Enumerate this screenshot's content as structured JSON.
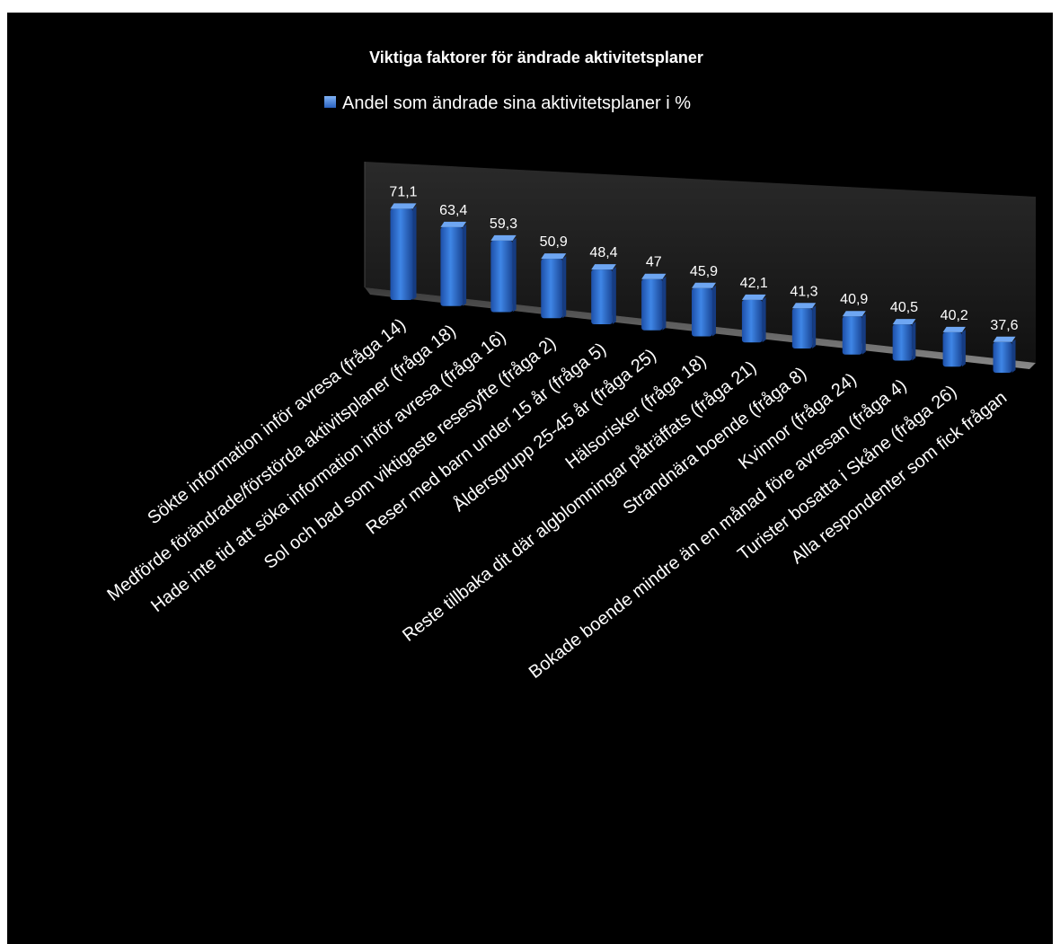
{
  "chart_data": {
    "type": "bar",
    "title": "Viktiga faktorer för ändrade aktivitetsplaner",
    "legend": {
      "position": "top"
    },
    "series": [
      {
        "name": "Andel som ändrade sina aktivitetsplaner i %",
        "color": "#2e6fd0",
        "values": [
          71.1,
          63.4,
          59.3,
          50.9,
          48.4,
          47,
          45.9,
          42.1,
          41.3,
          40.9,
          40.5,
          40.2,
          37.6
        ],
        "value_labels": [
          "71,1",
          "63,4",
          "59,3",
          "50,9",
          "48,4",
          "47",
          "45,9",
          "42,1",
          "41,3",
          "40,9",
          "40,5",
          "40,2",
          "37,6"
        ]
      }
    ],
    "categories": [
      "Sökte information inför avresa (fråga 14)",
      "Medförde förändrade/förstörda aktivitsplaner (fråga 18)",
      "Hade inte tid att söka information inför avresa (fråga 16)",
      "Sol och bad som viktigaste resesyfte (fråga 2)",
      "Reser med barn under 15 år (fråga 5)",
      "Åldersgrupp 25-45 år (fråga 25)",
      "Hälsorisker (fråga 18)",
      "Reste tillbaka dit där algblomningar påträffats (fråga 21)",
      "Strandnära boende (fråga 8)",
      "Kvinnor (fråga 24)",
      "Bokade boende mindre än en månad före avresan (fråga 4)",
      "Turister bosatta i Skåne (fråga 26)",
      "Alla respondenter som fick frågan"
    ],
    "grid": false,
    "background": "#000000"
  }
}
